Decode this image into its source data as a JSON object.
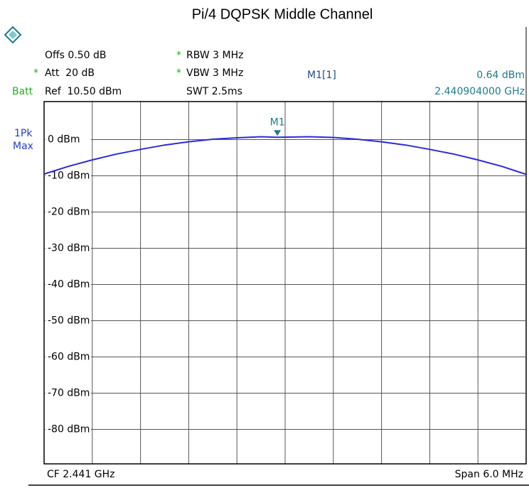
{
  "chart_data": {
    "type": "line",
    "title": "Pi/4 DQPSK Middle Channel",
    "settings": {
      "offset": "Offs 0.50 dB",
      "rbw": {
        "flag": "*",
        "text": "RBW 3 MHz"
      },
      "att": {
        "flag": "*",
        "text": "Att  20 dB"
      },
      "vbw": {
        "flag": "*",
        "text": "VBW 3 MHz"
      },
      "batt": "Batt",
      "ref": "Ref  10.50 dBm",
      "swt": "SWT 2.5ms"
    },
    "trace_label": [
      "1Pk",
      "Max"
    ],
    "marker": {
      "label": "M1",
      "readout_name": "M1[1]",
      "x": 2.440904,
      "y": 0.64,
      "y_label": "0.64 dBm",
      "x_label": "2.440904000 GHz"
    },
    "footer": {
      "center": "CF 2.441 GHz",
      "span": "Span 6.0 MHz"
    },
    "series": [
      {
        "name": "1Pk Max",
        "color": "#2b2bdc",
        "x": [
          2.438,
          2.4383,
          2.4386,
          2.4389,
          2.4392,
          2.4395,
          2.4398,
          2.4401,
          2.4404,
          2.4407,
          2.440904,
          2.4413,
          2.4416,
          2.4419,
          2.4422,
          2.4425,
          2.4428,
          2.4431,
          2.4434,
          2.4437,
          2.444
        ],
        "values": [
          -9.5,
          -7.4,
          -5.6,
          -4.0,
          -2.7,
          -1.5,
          -0.6,
          0.1,
          0.5,
          0.8,
          0.64,
          0.8,
          0.6,
          0.1,
          -0.6,
          -1.5,
          -2.7,
          -4.0,
          -5.6,
          -7.4,
          -9.6
        ]
      }
    ],
    "xlim": [
      2.438,
      2.444
    ],
    "ylim": [
      -89.5,
      10.5
    ],
    "yticks": [
      {
        "value": 0,
        "label": "0 dBm"
      },
      {
        "value": -10,
        "label": "-10 dBm"
      },
      {
        "value": -20,
        "label": "-20 dBm"
      },
      {
        "value": -30,
        "label": "-30 dBm"
      },
      {
        "value": -40,
        "label": "-40 dBm"
      },
      {
        "value": -50,
        "label": "-50 dBm"
      },
      {
        "value": -60,
        "label": "-60 dBm"
      },
      {
        "value": -70,
        "label": "-70 dBm"
      },
      {
        "value": -80,
        "label": "-80 dBm"
      }
    ],
    "grid": true
  }
}
